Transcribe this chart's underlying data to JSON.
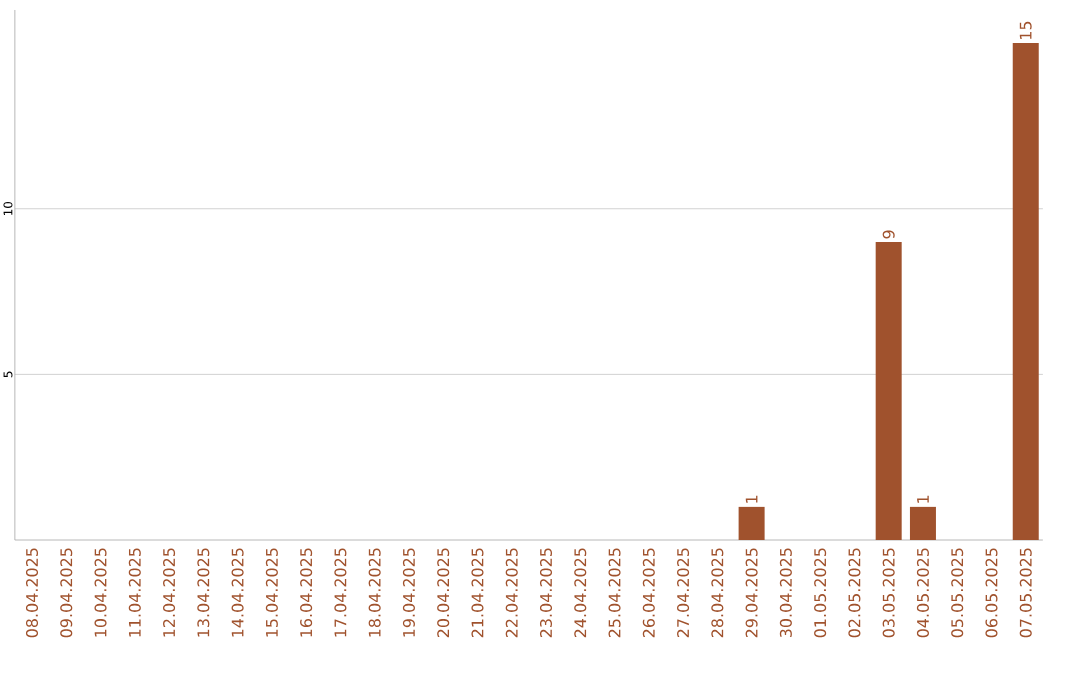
{
  "chart_data": {
    "type": "bar",
    "categories": [
      "08.04.2025",
      "09.04.2025",
      "10.04.2025",
      "11.04.2025",
      "12.04.2025",
      "13.04.2025",
      "14.04.2025",
      "15.04.2025",
      "16.04.2025",
      "17.04.2025",
      "18.04.2025",
      "19.04.2025",
      "20.04.2025",
      "21.04.2025",
      "22.04.2025",
      "23.04.2025",
      "24.04.2025",
      "25.04.2025",
      "26.04.2025",
      "27.04.2025",
      "28.04.2025",
      "29.04.2025",
      "30.04.2025",
      "01.05.2025",
      "02.05.2025",
      "03.05.2025",
      "04.05.2025",
      "05.05.2025",
      "06.05.2025",
      "07.05.2025"
    ],
    "values": [
      0,
      0,
      0,
      0,
      0,
      0,
      0,
      0,
      0,
      0,
      0,
      0,
      0,
      0,
      0,
      0,
      0,
      0,
      0,
      0,
      0,
      1,
      0,
      0,
      0,
      9,
      1,
      0,
      0,
      15
    ],
    "value_labels": [
      null,
      null,
      null,
      null,
      null,
      null,
      null,
      null,
      null,
      null,
      null,
      null,
      null,
      null,
      null,
      null,
      null,
      null,
      null,
      null,
      null,
      "1",
      null,
      null,
      null,
      "9",
      "1",
      null,
      null,
      "15"
    ],
    "color": "#a0522d",
    "ylim": [
      0,
      16
    ],
    "yticks": [
      5,
      10
    ],
    "grid": "y"
  }
}
